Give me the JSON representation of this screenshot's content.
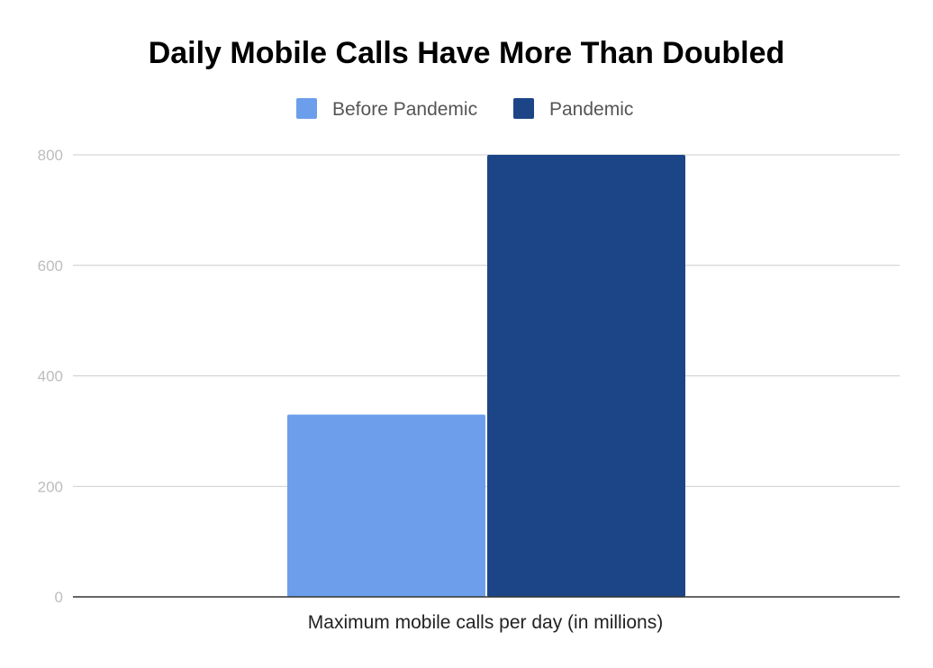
{
  "chart_data": {
    "type": "bar",
    "title": "Daily Mobile Calls Have More Than Doubled",
    "categories": [
      "Maximum mobile calls per day (in millions)"
    ],
    "series": [
      {
        "name": "Before Pandemic",
        "values": [
          330
        ],
        "color": "#6d9eeb"
      },
      {
        "name": "Pandemic",
        "values": [
          800
        ],
        "color": "#1c4587"
      }
    ],
    "xlabel": "Maximum mobile calls per day (in millions)",
    "ylabel": "",
    "ylim": [
      0,
      800
    ],
    "yticks": [
      "0",
      "200",
      "400",
      "600",
      "800"
    ],
    "grid": true,
    "legend_position": "top"
  }
}
